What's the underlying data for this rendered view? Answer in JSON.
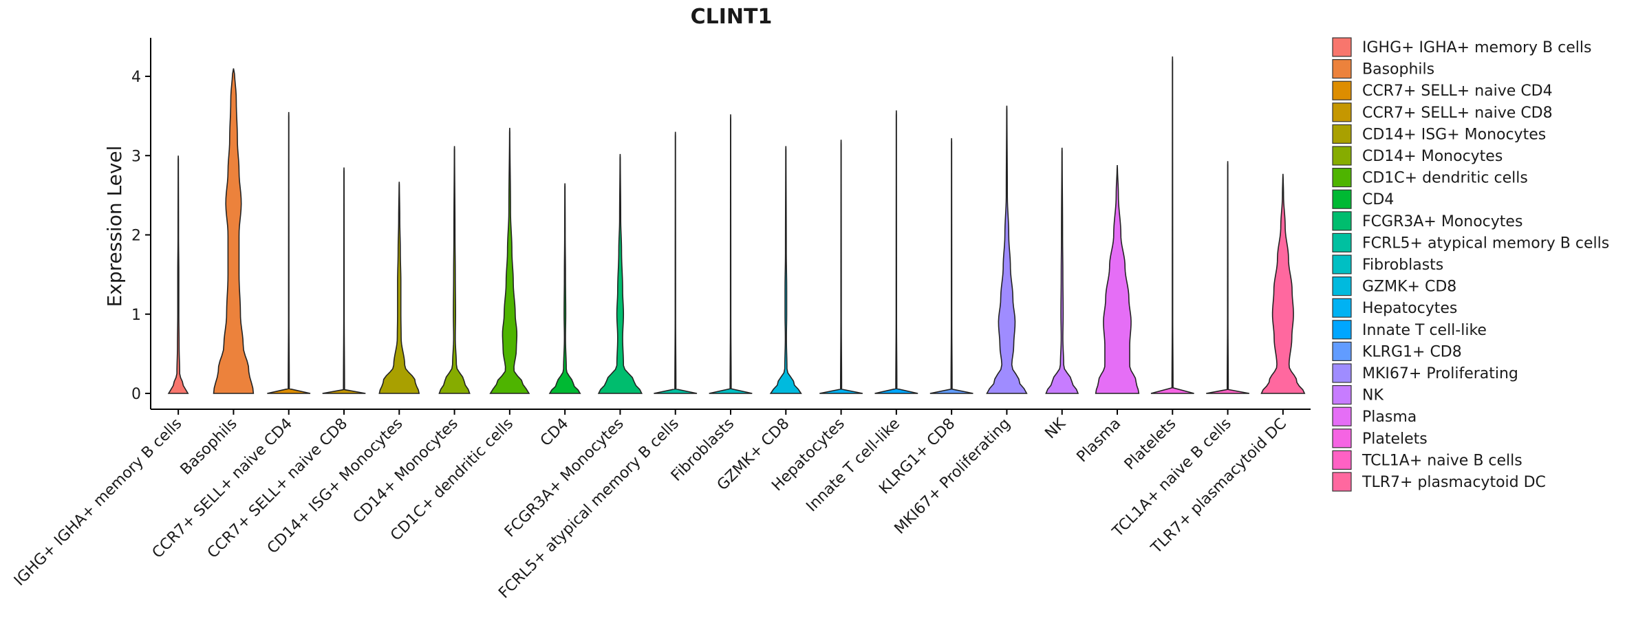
{
  "chart_data": {
    "type": "violin",
    "title": "CLINT1",
    "xlabel": "",
    "ylabel": "Expression Level",
    "ylim": [
      -0.22,
      4.5
    ],
    "yticks": [
      0,
      1,
      2,
      3,
      4
    ],
    "legend_position": "right",
    "groups": [
      {
        "name": " IGHG+ IGHA+ memory B cells",
        "color": "#F8766D",
        "max": 3.0,
        "profile": [
          [
            0,
            0.35
          ],
          [
            0.1,
            0.18
          ],
          [
            0.25,
            0.05
          ],
          [
            0.6,
            0.03
          ],
          [
            1.0,
            0.02
          ],
          [
            1.5,
            0.02
          ],
          [
            2.0,
            0.01
          ],
          [
            3.0,
            0.005
          ]
        ]
      },
      {
        "name": "Basophils",
        "color": "#EC823C",
        "max": 4.1,
        "profile": [
          [
            0,
            0.72
          ],
          [
            0.3,
            0.55
          ],
          [
            0.6,
            0.35
          ],
          [
            1.0,
            0.25
          ],
          [
            1.5,
            0.2
          ],
          [
            2.0,
            0.2
          ],
          [
            2.4,
            0.28
          ],
          [
            2.8,
            0.2
          ],
          [
            3.2,
            0.14
          ],
          [
            3.7,
            0.1
          ],
          [
            4.1,
            0.03
          ]
        ]
      },
      {
        "name": "CCR7+ SELL+ naive CD4",
        "color": "#DD8D00",
        "max": 3.55,
        "profile": [
          [
            0,
            0.78
          ],
          [
            0.03,
            0.02
          ],
          [
            1.0,
            0.008
          ],
          [
            3.55,
            0.004
          ]
        ]
      },
      {
        "name": "CCR7+ SELL+ naive CD8",
        "color": "#C59700",
        "max": 2.85,
        "profile": [
          [
            0,
            0.78
          ],
          [
            0.03,
            0.02
          ],
          [
            1.0,
            0.008
          ],
          [
            2.85,
            0.004
          ]
        ]
      },
      {
        "name": "CD14+ ISG+ Monocytes",
        "color": "#A9A000",
        "max": 2.67,
        "profile": [
          [
            0,
            0.72
          ],
          [
            0.15,
            0.58
          ],
          [
            0.35,
            0.2
          ],
          [
            0.7,
            0.07
          ],
          [
            1.0,
            0.06
          ],
          [
            1.4,
            0.06
          ],
          [
            1.8,
            0.04
          ],
          [
            2.2,
            0.02
          ],
          [
            2.67,
            0.005
          ]
        ]
      },
      {
        "name": "CD14+ Monocytes",
        "color": "#86AC00",
        "max": 3.12,
        "profile": [
          [
            0,
            0.55
          ],
          [
            0.15,
            0.35
          ],
          [
            0.35,
            0.07
          ],
          [
            0.7,
            0.03
          ],
          [
            1.0,
            0.04
          ],
          [
            1.5,
            0.03
          ],
          [
            2.0,
            0.02
          ],
          [
            3.12,
            0.005
          ]
        ]
      },
      {
        "name": "CD1C+ dendritic cells",
        "color": "#4EB400",
        "max": 3.35,
        "profile": [
          [
            0,
            0.7
          ],
          [
            0.12,
            0.48
          ],
          [
            0.3,
            0.15
          ],
          [
            0.55,
            0.24
          ],
          [
            0.75,
            0.26
          ],
          [
            1.0,
            0.2
          ],
          [
            1.4,
            0.13
          ],
          [
            1.8,
            0.08
          ],
          [
            2.3,
            0.03
          ],
          [
            3.35,
            0.005
          ]
        ]
      },
      {
        "name": "CD4",
        "color": "#00B933",
        "max": 2.65,
        "profile": [
          [
            0,
            0.55
          ],
          [
            0.12,
            0.3
          ],
          [
            0.3,
            0.05
          ],
          [
            0.7,
            0.02
          ],
          [
            1.0,
            0.03
          ],
          [
            1.5,
            0.02
          ],
          [
            2.0,
            0.01
          ],
          [
            2.65,
            0.005
          ]
        ]
      },
      {
        "name": "FCGR3A+ Monocytes",
        "color": "#00BD6E",
        "max": 3.02,
        "profile": [
          [
            0,
            0.78
          ],
          [
            0.15,
            0.5
          ],
          [
            0.35,
            0.12
          ],
          [
            0.7,
            0.09
          ],
          [
            1.0,
            0.12
          ],
          [
            1.3,
            0.09
          ],
          [
            1.8,
            0.05
          ],
          [
            2.2,
            0.02
          ],
          [
            3.02,
            0.005
          ]
        ]
      },
      {
        "name": "FCRL5+ atypical memory B cells",
        "color": "#00C0A0",
        "max": 3.3,
        "profile": [
          [
            0,
            0.78
          ],
          [
            0.03,
            0.02
          ],
          [
            1.0,
            0.008
          ],
          [
            3.3,
            0.004
          ]
        ]
      },
      {
        "name": "Fibroblasts",
        "color": "#00BFC3",
        "max": 3.52,
        "profile": [
          [
            0,
            0.78
          ],
          [
            0.03,
            0.02
          ],
          [
            1.0,
            0.008
          ],
          [
            3.52,
            0.004
          ]
        ]
      },
      {
        "name": "GZMK+ CD8",
        "color": "#00BADE",
        "max": 3.12,
        "profile": [
          [
            0,
            0.55
          ],
          [
            0.12,
            0.3
          ],
          [
            0.3,
            0.04
          ],
          [
            0.7,
            0.02
          ],
          [
            1.0,
            0.03
          ],
          [
            1.3,
            0.03
          ],
          [
            1.8,
            0.015
          ],
          [
            3.12,
            0.005
          ]
        ]
      },
      {
        "name": "Hepatocytes",
        "color": "#00B2F3",
        "max": 3.2,
        "profile": [
          [
            0,
            0.78
          ],
          [
            0.03,
            0.02
          ],
          [
            1.0,
            0.008
          ],
          [
            3.2,
            0.004
          ]
        ]
      },
      {
        "name": "Innate T cell-like",
        "color": "#00A6FF",
        "max": 3.57,
        "profile": [
          [
            0,
            0.78
          ],
          [
            0.03,
            0.02
          ],
          [
            1.0,
            0.008
          ],
          [
            3.57,
            0.004
          ]
        ]
      },
      {
        "name": "KLRG1+ CD8",
        "color": "#619CFF",
        "max": 3.22,
        "profile": [
          [
            0,
            0.78
          ],
          [
            0.03,
            0.02
          ],
          [
            1.0,
            0.008
          ],
          [
            3.22,
            0.004
          ]
        ]
      },
      {
        "name": "MKI67+ Proliferating",
        "color": "#9F8CFF",
        "max": 3.63,
        "profile": [
          [
            0,
            0.72
          ],
          [
            0.15,
            0.45
          ],
          [
            0.35,
            0.18
          ],
          [
            0.6,
            0.25
          ],
          [
            0.9,
            0.3
          ],
          [
            1.2,
            0.22
          ],
          [
            1.6,
            0.13
          ],
          [
            2.0,
            0.07
          ],
          [
            2.5,
            0.02
          ],
          [
            3.63,
            0.005
          ]
        ]
      },
      {
        "name": "NK",
        "color": "#C77CFF",
        "max": 3.1,
        "profile": [
          [
            0,
            0.58
          ],
          [
            0.15,
            0.35
          ],
          [
            0.35,
            0.06
          ],
          [
            0.7,
            0.03
          ],
          [
            1.0,
            0.04
          ],
          [
            1.5,
            0.03
          ],
          [
            2.0,
            0.02
          ],
          [
            3.1,
            0.005
          ]
        ]
      },
      {
        "name": "Plasma",
        "color": "#E56EF6",
        "max": 2.88,
        "profile": [
          [
            0,
            0.78
          ],
          [
            0.15,
            0.68
          ],
          [
            0.35,
            0.45
          ],
          [
            0.6,
            0.45
          ],
          [
            0.9,
            0.5
          ],
          [
            1.2,
            0.42
          ],
          [
            1.6,
            0.28
          ],
          [
            2.0,
            0.13
          ],
          [
            2.5,
            0.04
          ],
          [
            2.88,
            0.005
          ]
        ]
      },
      {
        "name": "Platelets",
        "color": "#F564E3",
        "max": 4.25,
        "profile": [
          [
            0,
            0.78
          ],
          [
            0.03,
            0.02
          ],
          [
            1.0,
            0.008
          ],
          [
            4.25,
            0.004
          ]
        ]
      },
      {
        "name": "TCL1A+ naive B cells",
        "color": "#FF61C4",
        "max": 2.93,
        "profile": [
          [
            0,
            0.78
          ],
          [
            0.03,
            0.02
          ],
          [
            1.0,
            0.008
          ],
          [
            2.93,
            0.004
          ]
        ]
      },
      {
        "name": "TLR7+ plasmacytoid DC",
        "color": "#FF689F",
        "max": 2.77,
        "profile": [
          [
            0,
            0.78
          ],
          [
            0.15,
            0.5
          ],
          [
            0.35,
            0.22
          ],
          [
            0.7,
            0.32
          ],
          [
            1.0,
            0.38
          ],
          [
            1.3,
            0.33
          ],
          [
            1.7,
            0.2
          ],
          [
            2.1,
            0.08
          ],
          [
            2.5,
            0.02
          ],
          [
            2.77,
            0.005
          ]
        ]
      }
    ],
    "x_tick_labels": [
      "IGHG+ IGHA+ memory B cells",
      "Basophils",
      "CCR7+ SELL+ naive CD4",
      "CCR7+ SELL+ naive CD8",
      "CD14+ ISG+ Monocytes",
      "CD14+ Monocytes",
      "CD1C+ dendritic cells",
      "CD4",
      "FCGR3A+ Monocytes",
      "FCRL5+ atypical memory B cells",
      "Fibroblasts",
      "GZMK+ CD8",
      "Hepatocytes",
      "Innate T cell-like",
      "KLRG1+ CD8",
      "MKI67+ Proliferating",
      "NK",
      "Plasma",
      "Platelets",
      "TCL1A+ naive B cells",
      "TLR7+ plasmacytoid DC"
    ]
  }
}
